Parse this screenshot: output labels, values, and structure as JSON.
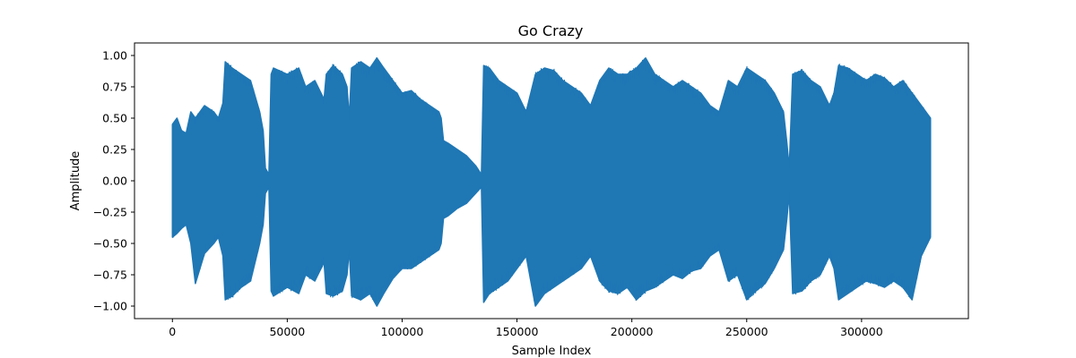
{
  "chart_data": {
    "type": "line",
    "title": "Go Crazy",
    "xlabel": "Sample Index",
    "ylabel": "Amplitude",
    "xlim": [
      -16500,
      346500
    ],
    "ylim": [
      -1.1,
      1.1
    ],
    "x_ticks": [
      0,
      50000,
      100000,
      150000,
      200000,
      250000,
      300000
    ],
    "y_ticks": [
      -1.0,
      -0.75,
      -0.5,
      -0.25,
      0.0,
      0.25,
      0.5,
      0.75,
      1.0
    ],
    "x_tick_labels": [
      "0",
      "50000",
      "100000",
      "150000",
      "200000",
      "250000",
      "300000"
    ],
    "y_tick_labels": [
      "−1.00",
      "−0.75",
      "−0.50",
      "−0.25",
      "0.00",
      "0.25",
      "0.50",
      "0.75",
      "1.00"
    ],
    "grid": false,
    "line_color": "#1f77b4",
    "series": [
      {
        "x_range": [
          0,
          330000
        ],
        "envelope": {
          "x": [
            0,
            2000,
            4000,
            6000,
            8000,
            10000,
            14000,
            18000,
            20000,
            22000,
            23000,
            26000,
            30000,
            34000,
            38000,
            39500,
            40500,
            42000,
            43000,
            44000,
            50000,
            55000,
            58000,
            62000,
            66000,
            67000,
            70000,
            74000,
            76000,
            77000,
            78000,
            82000,
            86000,
            89000,
            92000,
            96000,
            100000,
            104000,
            108000,
            112000,
            116000,
            117000,
            118000,
            120000,
            124000,
            128000,
            132000,
            134500,
            135500,
            138000,
            142000,
            146000,
            150000,
            154000,
            158000,
            162000,
            166000,
            170000,
            174000,
            178000,
            182000,
            186000,
            190000,
            194000,
            198000,
            202000,
            206000,
            210000,
            214000,
            218000,
            222000,
            226000,
            230000,
            234000,
            238000,
            242000,
            246000,
            250000,
            254000,
            258000,
            262000,
            266000,
            267500,
            268500,
            270000,
            274000,
            278000,
            282000,
            286000,
            288000,
            290000,
            294000,
            298000,
            302000,
            306000,
            310000,
            314000,
            318000,
            322000,
            326000,
            330000
          ],
          "upper": [
            0.45,
            0.5,
            0.4,
            0.38,
            0.55,
            0.5,
            0.6,
            0.55,
            0.5,
            0.62,
            0.95,
            0.9,
            0.85,
            0.8,
            0.55,
            0.4,
            0.1,
            0.05,
            0.85,
            0.9,
            0.85,
            0.9,
            0.75,
            0.8,
            0.65,
            0.85,
            0.92,
            0.85,
            0.75,
            0.5,
            0.9,
            0.95,
            0.9,
            0.98,
            0.9,
            0.8,
            0.7,
            0.72,
            0.65,
            0.6,
            0.55,
            0.5,
            0.32,
            0.3,
            0.25,
            0.2,
            0.12,
            0.05,
            0.92,
            0.9,
            0.8,
            0.75,
            0.7,
            0.55,
            0.85,
            0.9,
            0.88,
            0.8,
            0.75,
            0.7,
            0.6,
            0.8,
            0.9,
            0.85,
            0.85,
            0.9,
            0.98,
            0.85,
            0.8,
            0.75,
            0.8,
            0.75,
            0.7,
            0.6,
            0.55,
            0.8,
            0.75,
            0.9,
            0.85,
            0.8,
            0.7,
            0.55,
            0.3,
            0.1,
            0.85,
            0.88,
            0.8,
            0.75,
            0.6,
            0.7,
            0.92,
            0.9,
            0.85,
            0.8,
            0.85,
            0.82,
            0.75,
            0.8,
            0.7,
            0.6,
            0.5
          ],
          "lower": [
            -0.45,
            -0.42,
            -0.38,
            -0.35,
            -0.5,
            -0.82,
            -0.58,
            -0.5,
            -0.45,
            -0.6,
            -0.95,
            -0.92,
            -0.85,
            -0.8,
            -0.5,
            -0.35,
            -0.1,
            -0.05,
            -0.88,
            -0.92,
            -0.85,
            -0.9,
            -0.75,
            -0.8,
            -0.65,
            -0.9,
            -0.92,
            -0.88,
            -0.75,
            -0.55,
            -0.92,
            -0.95,
            -0.9,
            -1.0,
            -0.9,
            -0.78,
            -0.7,
            -0.7,
            -0.65,
            -0.6,
            -0.55,
            -0.5,
            -0.3,
            -0.28,
            -0.22,
            -0.18,
            -0.1,
            -0.05,
            -0.97,
            -0.9,
            -0.85,
            -0.8,
            -0.7,
            -0.6,
            -1.0,
            -0.9,
            -0.85,
            -0.8,
            -0.75,
            -0.7,
            -0.6,
            -0.8,
            -0.88,
            -0.9,
            -0.85,
            -0.95,
            -0.88,
            -0.85,
            -0.8,
            -0.75,
            -0.78,
            -0.72,
            -0.7,
            -0.6,
            -0.55,
            -0.8,
            -0.75,
            -0.95,
            -0.88,
            -0.82,
            -0.7,
            -0.55,
            -0.3,
            -0.1,
            -0.9,
            -0.88,
            -0.8,
            -0.75,
            -0.6,
            -0.7,
            -0.95,
            -0.9,
            -0.85,
            -0.8,
            -0.82,
            -0.85,
            -0.8,
            -0.85,
            -0.95,
            -0.6,
            -0.45
          ]
        }
      }
    ]
  }
}
